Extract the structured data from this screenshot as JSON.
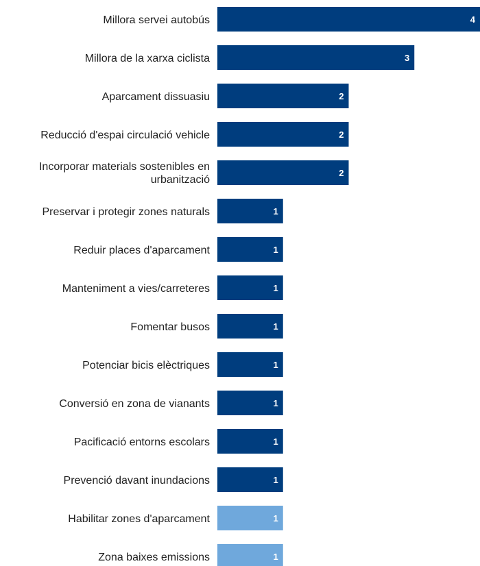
{
  "chart_data": {
    "type": "bar",
    "orientation": "horizontal",
    "title": "",
    "xlabel": "",
    "ylabel": "",
    "xlim": [
      0,
      4
    ],
    "grid": false,
    "legend": "none",
    "categories": [
      "Millora servei autobús",
      "Millora de la xarxa ciclista",
      "Aparcament dissuasiu",
      "Reducció d'espai circulació vehicle",
      "Incorporar materials sostenibles en urbanització",
      "Preservar i protegir zones naturals",
      "Reduir places d'aparcament",
      "Manteniment a vies/carreteres",
      "Fomentar busos",
      "Potenciar bicis elèctriques",
      "Conversió en zona de vianants",
      "Pacificació entorns escolars",
      "Prevenció davant inundacions",
      "Habilitar zones d'aparcament",
      "Zona baixes emissions"
    ],
    "values": [
      4,
      3,
      2,
      2,
      2,
      1,
      1,
      1,
      1,
      1,
      1,
      1,
      1,
      1,
      1
    ],
    "bar_colors": [
      "#003d7e",
      "#003d7e",
      "#003d7e",
      "#003d7e",
      "#003d7e",
      "#003d7e",
      "#003d7e",
      "#003d7e",
      "#003d7e",
      "#003d7e",
      "#003d7e",
      "#003d7e",
      "#003d7e",
      "#6fa8dc",
      "#6fa8dc"
    ]
  }
}
